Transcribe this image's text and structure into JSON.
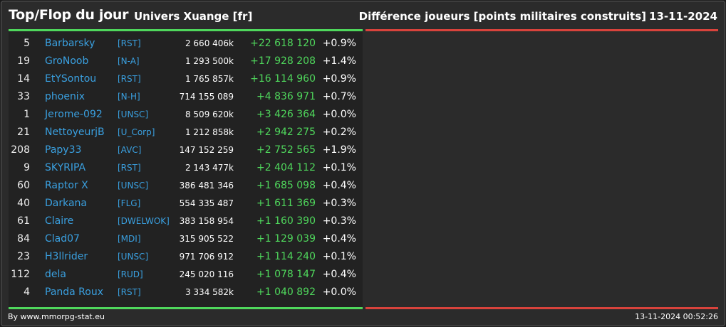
{
  "header": {
    "title": "Top/Flop du jour",
    "universe": "Univers Xuange [fr]",
    "metric": "Différence joueurs [points militaires construits]",
    "date": "13-11-2024"
  },
  "colors": {
    "top_accent": "#4fd75c",
    "flop_accent": "#d9433c",
    "link": "#3aa0e0",
    "positive": "#4fd75c"
  },
  "top": [
    {
      "rank": "5",
      "name": "Barbarsky",
      "ally": "[RST]",
      "points": "2 660 406k",
      "diff": "+22 618 120",
      "pct": "+0.9%"
    },
    {
      "rank": "19",
      "name": "GroNoob",
      "ally": "[N-A]",
      "points": "1 293 500k",
      "diff": "+17 928 208",
      "pct": "+1.4%"
    },
    {
      "rank": "14",
      "name": "EtYSontou",
      "ally": "[RST]",
      "points": "1 765 857k",
      "diff": "+16 114 960",
      "pct": "+0.9%"
    },
    {
      "rank": "33",
      "name": "phoenix",
      "ally": "[N-H]",
      "points": "714 155 089",
      "diff": "+4 836 971",
      "pct": "+0.7%"
    },
    {
      "rank": "1",
      "name": "Jerome-092",
      "ally": "[UNSC]",
      "points": "8 509 620k",
      "diff": "+3 426 364",
      "pct": "+0.0%"
    },
    {
      "rank": "21",
      "name": "NettoyeurjB",
      "ally": "[U_Corp]",
      "points": "1 212 858k",
      "diff": "+2 942 275",
      "pct": "+0.2%"
    },
    {
      "rank": "208",
      "name": "Papy33",
      "ally": "[AVC]",
      "points": "147 152 259",
      "diff": "+2 752 565",
      "pct": "+1.9%"
    },
    {
      "rank": "9",
      "name": "SKYRIPA",
      "ally": "[RST]",
      "points": "2 143 477k",
      "diff": "+2 404 112",
      "pct": "+0.1%"
    },
    {
      "rank": "60",
      "name": "Raptor X",
      "ally": "[UNSC]",
      "points": "386 481 346",
      "diff": "+1 685 098",
      "pct": "+0.4%"
    },
    {
      "rank": "40",
      "name": "Darkana",
      "ally": "[FLG]",
      "points": "554 335 487",
      "diff": "+1 611 369",
      "pct": "+0.3%"
    },
    {
      "rank": "61",
      "name": "Claire",
      "ally": "[DWELWOK]",
      "points": "383 158 954",
      "diff": "+1 160 390",
      "pct": "+0.3%"
    },
    {
      "rank": "84",
      "name": "Clad07",
      "ally": "[MDI]",
      "points": "315 905 522",
      "diff": "+1 129 039",
      "pct": "+0.4%"
    },
    {
      "rank": "23",
      "name": "H3llrider",
      "ally": "[UNSC]",
      "points": "971 706 912",
      "diff": "+1 114 240",
      "pct": "+0.1%"
    },
    {
      "rank": "112",
      "name": "dela",
      "ally": "[RUD]",
      "points": "245 020 116",
      "diff": "+1 078 147",
      "pct": "+0.4%"
    },
    {
      "rank": "4",
      "name": "Panda Roux",
      "ally": "[RST]",
      "points": "3 334 582k",
      "diff": "+1 040 892",
      "pct": "+0.0%"
    }
  ],
  "flop": [],
  "footer": {
    "source": "By www.mmorpg-stat.eu",
    "timestamp": "13-11-2024 00:52:26"
  }
}
